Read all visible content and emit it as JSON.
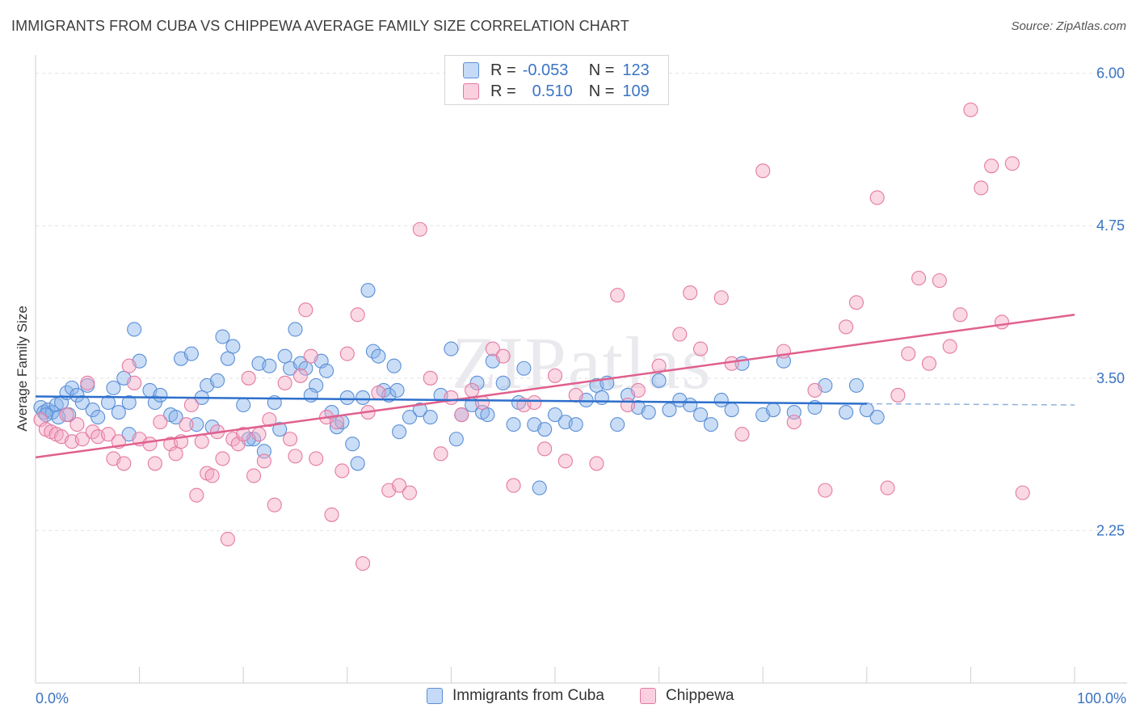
{
  "title": "IMMIGRANTS FROM CUBA VS CHIPPEWA AVERAGE FAMILY SIZE CORRELATION CHART",
  "source": "Source: ZipAtlas.com",
  "watermark": "ZIPatlas",
  "legend_stats": [
    {
      "r_label": "R =",
      "r_value": "-0.053",
      "n_label": "N =",
      "n_value": "123"
    },
    {
      "r_label": "R =",
      "r_value": "0.510",
      "n_label": "N =",
      "n_value": "109"
    }
  ],
  "chart_data": {
    "type": "scatter",
    "title": "IMMIGRANTS FROM CUBA VS CHIPPEWA AVERAGE FAMILY SIZE CORRELATION CHART",
    "xlabel": "",
    "ylabel": "Average Family Size",
    "xlim": [
      0,
      100
    ],
    "ylim": [
      1.0,
      6.15
    ],
    "x_tick_labels": [
      "0.0%",
      "100.0%"
    ],
    "y_ticks": [
      2.25,
      3.5,
      4.75,
      6.0
    ],
    "y_tick_labels": [
      "2.25",
      "3.50",
      "4.75",
      "6.00"
    ],
    "grid": true,
    "legend_position": "bottom",
    "series": [
      {
        "name": "Immigrants from Cuba",
        "color": "#8ab4ea",
        "stroke": "#5a8fd6",
        "line_color": "#2d6fcc",
        "trend": {
          "x0": 0,
          "y0": 3.35,
          "x1": 80,
          "y1": 3.29,
          "dash_to": 100,
          "dash_y": 3.28
        },
        "points": [
          [
            0.5,
            3.26
          ],
          [
            0.8,
            3.22
          ],
          [
            1.2,
            3.24
          ],
          [
            1.6,
            3.22
          ],
          [
            2.0,
            3.28
          ],
          [
            2.5,
            3.3
          ],
          [
            3.0,
            3.38
          ],
          [
            3.5,
            3.42
          ],
          [
            3.2,
            3.2
          ],
          [
            4.0,
            3.36
          ],
          [
            4.5,
            3.3
          ],
          [
            5.0,
            3.44
          ],
          [
            5.5,
            3.24
          ],
          [
            6.0,
            3.18
          ],
          [
            7.0,
            3.3
          ],
          [
            7.5,
            3.42
          ],
          [
            8.0,
            3.22
          ],
          [
            8.5,
            3.5
          ],
          [
            9.0,
            3.3
          ],
          [
            9.5,
            3.9
          ],
          [
            10.0,
            3.64
          ],
          [
            11.0,
            3.4
          ],
          [
            11.5,
            3.3
          ],
          [
            12.0,
            3.36
          ],
          [
            13.0,
            3.2
          ],
          [
            14.0,
            3.66
          ],
          [
            15.0,
            3.7
          ],
          [
            16.0,
            3.34
          ],
          [
            16.5,
            3.44
          ],
          [
            17.0,
            3.1
          ],
          [
            17.5,
            3.48
          ],
          [
            18.0,
            3.84
          ],
          [
            18.5,
            3.66
          ],
          [
            19.0,
            3.76
          ],
          [
            20.0,
            3.28
          ],
          [
            21.0,
            3.0
          ],
          [
            21.5,
            3.62
          ],
          [
            22.0,
            2.9
          ],
          [
            22.5,
            3.6
          ],
          [
            23.0,
            3.3
          ],
          [
            23.5,
            3.08
          ],
          [
            24.0,
            3.68
          ],
          [
            24.5,
            3.58
          ],
          [
            25.0,
            3.9
          ],
          [
            25.5,
            3.62
          ],
          [
            26.0,
            3.58
          ],
          [
            27.0,
            3.44
          ],
          [
            27.5,
            3.64
          ],
          [
            28.0,
            3.56
          ],
          [
            28.5,
            3.22
          ],
          [
            29.0,
            3.1
          ],
          [
            29.5,
            3.14
          ],
          [
            30.0,
            3.34
          ],
          [
            30.5,
            2.96
          ],
          [
            31.0,
            2.8
          ],
          [
            31.5,
            3.34
          ],
          [
            32.0,
            4.22
          ],
          [
            32.5,
            3.72
          ],
          [
            33.0,
            3.68
          ],
          [
            33.5,
            3.4
          ],
          [
            34.0,
            3.36
          ],
          [
            34.5,
            3.6
          ],
          [
            35.0,
            3.06
          ],
          [
            36.0,
            3.18
          ],
          [
            37.0,
            3.24
          ],
          [
            38.0,
            3.18
          ],
          [
            39.0,
            3.36
          ],
          [
            40.0,
            3.74
          ],
          [
            40.5,
            3.0
          ],
          [
            41.0,
            3.2
          ],
          [
            42.0,
            3.28
          ],
          [
            42.5,
            3.46
          ],
          [
            43.0,
            3.22
          ],
          [
            43.5,
            3.2
          ],
          [
            44.0,
            3.64
          ],
          [
            45.0,
            3.46
          ],
          [
            46.0,
            3.12
          ],
          [
            46.5,
            3.3
          ],
          [
            47.0,
            3.58
          ],
          [
            48.0,
            3.12
          ],
          [
            48.5,
            2.6
          ],
          [
            49.0,
            3.08
          ],
          [
            50.0,
            3.2
          ],
          [
            51.0,
            3.14
          ],
          [
            52.0,
            3.12
          ],
          [
            53.0,
            3.32
          ],
          [
            54.0,
            3.44
          ],
          [
            54.5,
            3.34
          ],
          [
            55.0,
            3.46
          ],
          [
            56.0,
            3.12
          ],
          [
            57.0,
            3.36
          ],
          [
            58.0,
            3.26
          ],
          [
            59.0,
            3.22
          ],
          [
            60.0,
            3.48
          ],
          [
            61.0,
            3.24
          ],
          [
            62.0,
            3.32
          ],
          [
            63.0,
            3.28
          ],
          [
            64.0,
            3.2
          ],
          [
            65.0,
            3.12
          ],
          [
            66.0,
            3.32
          ],
          [
            67.0,
            3.24
          ],
          [
            68.0,
            3.62
          ],
          [
            70.0,
            3.2
          ],
          [
            71.0,
            3.24
          ],
          [
            72.0,
            3.64
          ],
          [
            73.0,
            3.22
          ],
          [
            75.0,
            3.26
          ],
          [
            76.0,
            3.44
          ],
          [
            78.0,
            3.22
          ],
          [
            79.0,
            3.44
          ],
          [
            80.0,
            3.24
          ],
          [
            81.0,
            3.18
          ],
          [
            1.0,
            3.2
          ],
          [
            2.2,
            3.18
          ],
          [
            9.0,
            3.04
          ],
          [
            13.5,
            3.18
          ],
          [
            15.5,
            3.12
          ],
          [
            20.5,
            3.0
          ],
          [
            26.5,
            3.36
          ],
          [
            34.8,
            3.4
          ]
        ]
      },
      {
        "name": "Chippewa",
        "color": "#f4a8c4",
        "stroke": "#e47aa2",
        "line_color": "#e0608e",
        "trend": {
          "x0": 0,
          "y0": 2.85,
          "x1": 100,
          "y1": 4.02
        },
        "points": [
          [
            0.5,
            3.16
          ],
          [
            1.0,
            3.08
          ],
          [
            1.5,
            3.06
          ],
          [
            2.0,
            3.04
          ],
          [
            2.5,
            3.02
          ],
          [
            3.0,
            3.2
          ],
          [
            3.5,
            2.98
          ],
          [
            4.0,
            3.12
          ],
          [
            4.5,
            3.0
          ],
          [
            5.0,
            3.46
          ],
          [
            5.5,
            3.06
          ],
          [
            6.0,
            3.02
          ],
          [
            7.0,
            3.04
          ],
          [
            7.5,
            2.84
          ],
          [
            8.0,
            2.98
          ],
          [
            8.5,
            2.8
          ],
          [
            9.0,
            3.6
          ],
          [
            9.5,
            3.46
          ],
          [
            10.0,
            3.0
          ],
          [
            11.0,
            2.96
          ],
          [
            11.5,
            2.8
          ],
          [
            12.0,
            3.14
          ],
          [
            13.0,
            2.96
          ],
          [
            13.5,
            2.88
          ],
          [
            14.0,
            2.98
          ],
          [
            14.5,
            3.12
          ],
          [
            15.0,
            3.28
          ],
          [
            15.5,
            2.54
          ],
          [
            16.0,
            2.98
          ],
          [
            16.5,
            2.72
          ],
          [
            17.0,
            2.7
          ],
          [
            17.5,
            3.06
          ],
          [
            18.0,
            2.84
          ],
          [
            18.5,
            2.18
          ],
          [
            19.0,
            3.0
          ],
          [
            19.5,
            2.96
          ],
          [
            20.0,
            3.04
          ],
          [
            20.5,
            3.5
          ],
          [
            21.0,
            2.7
          ],
          [
            21.5,
            3.04
          ],
          [
            22.0,
            2.82
          ],
          [
            22.5,
            3.16
          ],
          [
            23.0,
            2.46
          ],
          [
            24.0,
            3.46
          ],
          [
            24.5,
            3.0
          ],
          [
            25.0,
            2.86
          ],
          [
            25.5,
            3.52
          ],
          [
            26.0,
            4.06
          ],
          [
            26.5,
            3.68
          ],
          [
            27.0,
            2.84
          ],
          [
            28.0,
            3.18
          ],
          [
            28.5,
            2.38
          ],
          [
            29.0,
            3.14
          ],
          [
            29.5,
            2.74
          ],
          [
            30.0,
            3.7
          ],
          [
            31.0,
            4.02
          ],
          [
            31.5,
            1.98
          ],
          [
            32.0,
            3.22
          ],
          [
            33.0,
            3.38
          ],
          [
            34.0,
            2.58
          ],
          [
            35.0,
            2.62
          ],
          [
            36.0,
            2.56
          ],
          [
            37.0,
            4.72
          ],
          [
            38.0,
            3.5
          ],
          [
            39.0,
            2.88
          ],
          [
            40.0,
            3.34
          ],
          [
            41.0,
            3.2
          ],
          [
            42.0,
            3.4
          ],
          [
            43.0,
            3.3
          ],
          [
            44.0,
            3.74
          ],
          [
            45.0,
            3.68
          ],
          [
            46.0,
            2.62
          ],
          [
            47.0,
            3.28
          ],
          [
            48.0,
            3.3
          ],
          [
            49.0,
            2.92
          ],
          [
            50.0,
            3.52
          ],
          [
            51.0,
            2.82
          ],
          [
            52.0,
            3.36
          ],
          [
            54.0,
            2.8
          ],
          [
            56.0,
            4.18
          ],
          [
            57.0,
            3.28
          ],
          [
            58.0,
            3.4
          ],
          [
            60.0,
            3.6
          ],
          [
            62.0,
            3.86
          ],
          [
            63.0,
            4.2
          ],
          [
            64.0,
            3.74
          ],
          [
            66.0,
            4.16
          ],
          [
            67.0,
            3.62
          ],
          [
            68.0,
            3.04
          ],
          [
            70.0,
            5.2
          ],
          [
            72.0,
            3.72
          ],
          [
            73.0,
            3.14
          ],
          [
            75.0,
            3.4
          ],
          [
            76.0,
            2.58
          ],
          [
            78.0,
            3.92
          ],
          [
            79.0,
            4.12
          ],
          [
            81.0,
            4.98
          ],
          [
            82.0,
            2.6
          ],
          [
            83.0,
            3.36
          ],
          [
            84.0,
            3.7
          ],
          [
            85.0,
            4.32
          ],
          [
            86.0,
            3.62
          ],
          [
            87.0,
            4.3
          ],
          [
            88.0,
            3.76
          ],
          [
            89.0,
            4.02
          ],
          [
            90.0,
            5.7
          ],
          [
            91.0,
            5.06
          ],
          [
            92.0,
            5.24
          ],
          [
            93.0,
            3.96
          ],
          [
            94.0,
            5.26
          ],
          [
            95.0,
            2.56
          ]
        ]
      }
    ]
  }
}
